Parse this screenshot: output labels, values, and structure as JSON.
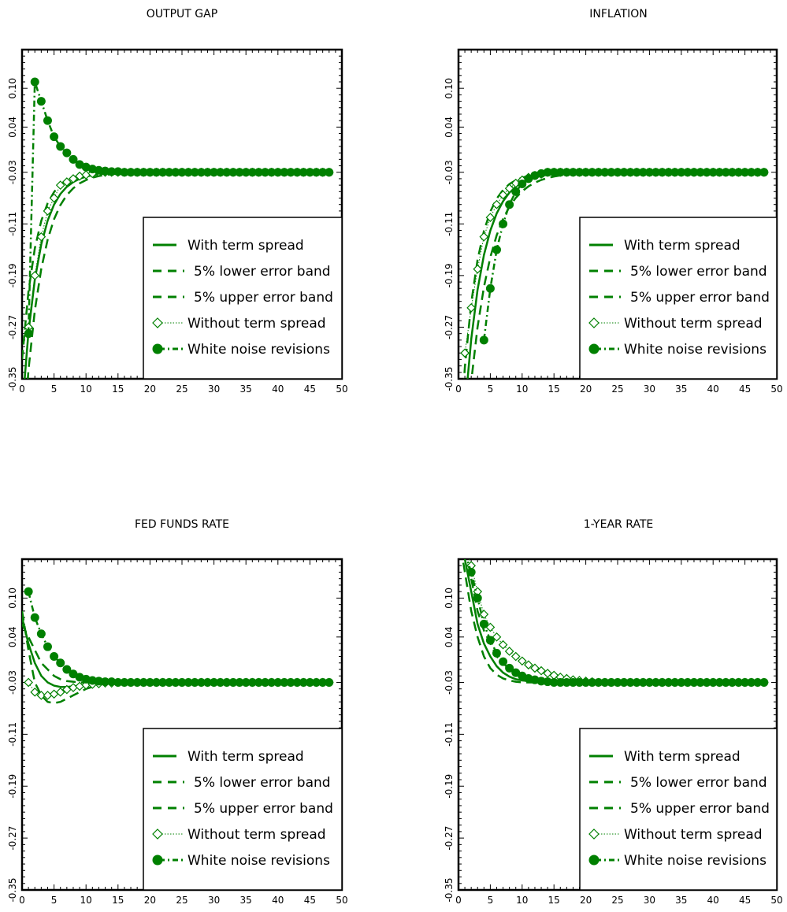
{
  "legend": [
    {
      "label": "With term spread",
      "style": "solid"
    },
    {
      "label": "5% lower error band",
      "style": "dashed"
    },
    {
      "label": "5% upper error band",
      "style": "dashed"
    },
    {
      "label": "Without term spread",
      "style": "diamond-dotted"
    },
    {
      "label": "White noise revisions",
      "style": "dot-dashed"
    }
  ],
  "chart_data": [
    {
      "type": "line",
      "title": "OUTPUT GAP",
      "xlim": [
        0,
        50
      ],
      "ylim": [
        -0.35,
        0.16
      ],
      "xticks": [
        0,
        5,
        10,
        15,
        20,
        25,
        30,
        35,
        40,
        45,
        50
      ],
      "yticks": [
        -0.35,
        -0.27,
        -0.19,
        -0.11,
        -0.03,
        0.04,
        0.1
      ],
      "legend_position": "lower-right",
      "series": {
        "with_term_spread": {
          "y0": -0.4,
          "rate": 0.4
        },
        "lower_band": {
          "y0": -0.47,
          "rate": 0.36
        },
        "upper_band": {
          "y0": -0.32,
          "rate": 0.45
        },
        "without_term_spread": {
          "y0": -0.4,
          "rate": 0.4,
          "start": 1,
          "points": [
            -0.27,
            -0.19,
            -0.13,
            -0.09,
            -0.07,
            -0.05,
            -0.045,
            -0.04,
            -0.036,
            -0.034,
            -0.032
          ]
        },
        "white_noise": {
          "start": 1,
          "points": [
            -0.28,
            0.11,
            0.08,
            0.05,
            0.025,
            0.01,
            0.0,
            -0.01,
            -0.018,
            -0.022,
            -0.025,
            -0.027,
            -0.028,
            -0.029,
            -0.029
          ]
        },
        "steady": -0.03,
        "end": 48
      }
    },
    {
      "type": "line",
      "title": "INFLATION",
      "xlim": [
        0,
        50
      ],
      "ylim": [
        -0.35,
        0.16
      ],
      "xticks": [
        0,
        5,
        10,
        15,
        20,
        25,
        30,
        35,
        40,
        45,
        50
      ],
      "yticks": [
        -0.35,
        -0.27,
        -0.19,
        -0.11,
        -0.03,
        0.04,
        0.1
      ],
      "legend_position": "lower-right",
      "series": {
        "with_term_spread": {
          "y0": -0.55,
          "rate": 0.35
        },
        "lower_band": {
          "y0": -0.62,
          "rate": 0.3
        },
        "upper_band": {
          "y0": -0.48,
          "rate": 0.4
        },
        "without_term_spread": {
          "start": 1,
          "points": [
            -0.31,
            -0.24,
            -0.18,
            -0.13,
            -0.1,
            -0.08,
            -0.065,
            -0.055,
            -0.047,
            -0.042,
            -0.038,
            -0.035,
            -0.033
          ]
        },
        "white_noise": {
          "start": 4,
          "points": [
            -0.29,
            -0.21,
            -0.15,
            -0.11,
            -0.08,
            -0.06,
            -0.048,
            -0.04,
            -0.035,
            -0.032
          ]
        },
        "steady": -0.03,
        "end": 48
      }
    },
    {
      "type": "line",
      "title": "FED FUNDS RATE",
      "xlim": [
        0,
        50
      ],
      "ylim": [
        -0.35,
        0.16
      ],
      "xticks": [
        0,
        5,
        10,
        15,
        20,
        25,
        30,
        35,
        40,
        45,
        50
      ],
      "yticks": [
        -0.35,
        -0.27,
        -0.19,
        -0.11,
        -0.03,
        0.04,
        0.1
      ],
      "legend_position": "lower-right",
      "series": {
        "with_term_spread": {
          "points": [
            0.07,
            0.03,
            0.0,
            -0.02,
            -0.03,
            -0.035,
            -0.037,
            -0.037,
            -0.036,
            -0.035,
            -0.034,
            -0.033,
            -0.032,
            -0.031,
            -0.031,
            -0.03
          ]
        },
        "lower_band": {
          "points": [
            0.08,
            0.02,
            -0.03,
            -0.05,
            -0.06,
            -0.062,
            -0.06,
            -0.055,
            -0.05,
            -0.045,
            -0.04,
            -0.037,
            -0.034,
            -0.032,
            -0.031,
            -0.03
          ]
        },
        "upper_band": {
          "points": [
            0.06,
            0.04,
            0.02,
            0.0,
            -0.01,
            -0.02,
            -0.025,
            -0.028,
            -0.029,
            -0.03
          ]
        },
        "without_term_spread": {
          "start": 1,
          "points": [
            -0.03,
            -0.045,
            -0.05,
            -0.05,
            -0.048,
            -0.045,
            -0.041,
            -0.038,
            -0.036,
            -0.034,
            -0.033,
            -0.032,
            -0.031,
            -0.031,
            -0.03
          ]
        },
        "white_noise": {
          "start": 1,
          "points": [
            0.11,
            0.07,
            0.045,
            0.025,
            0.01,
            0.0,
            -0.01,
            -0.017,
            -0.022,
            -0.025,
            -0.027,
            -0.028,
            -0.029,
            -0.029
          ]
        },
        "steady": -0.03,
        "end": 48
      }
    },
    {
      "type": "line",
      "title": "1-YEAR RATE",
      "xlim": [
        0,
        50
      ],
      "ylim": [
        -0.35,
        0.16
      ],
      "xticks": [
        0,
        5,
        10,
        15,
        20,
        25,
        30,
        35,
        40,
        45,
        50
      ],
      "yticks": [
        -0.35,
        -0.27,
        -0.19,
        -0.11,
        -0.03,
        0.04,
        0.1
      ],
      "legend_position": "lower-right",
      "series": {
        "with_term_spread": {
          "points": [
            0.2,
            0.16,
            0.11,
            0.06,
            0.03,
            0.01,
            -0.005,
            -0.015,
            -0.021,
            -0.025,
            -0.027,
            -0.028,
            -0.029,
            -0.03
          ]
        },
        "lower_band": {
          "points": [
            0.2,
            0.14,
            0.08,
            0.04,
            0.01,
            -0.008,
            -0.018,
            -0.024,
            -0.027,
            -0.029,
            -0.03
          ]
        },
        "upper_band": {
          "points": [
            0.22,
            0.18,
            0.13,
            0.08,
            0.05,
            0.03,
            0.01,
            0.0,
            -0.01,
            -0.016,
            -0.021,
            -0.025,
            -0.028,
            -0.03
          ]
        },
        "without_term_spread": {
          "start": 1,
          "points": [
            0.18,
            0.15,
            0.11,
            0.075,
            0.055,
            0.04,
            0.028,
            0.018,
            0.01,
            0.003,
            -0.003,
            -0.008,
            -0.012,
            -0.016,
            -0.019,
            -0.022,
            -0.024,
            -0.026,
            -0.027,
            -0.028,
            -0.029,
            -0.03
          ]
        },
        "white_noise": {
          "start": 1,
          "points": [
            0.17,
            0.14,
            0.1,
            0.06,
            0.035,
            0.015,
            0.002,
            -0.008,
            -0.015,
            -0.02,
            -0.024,
            -0.026,
            -0.028,
            -0.029
          ]
        },
        "steady": -0.03,
        "end": 48
      }
    }
  ]
}
